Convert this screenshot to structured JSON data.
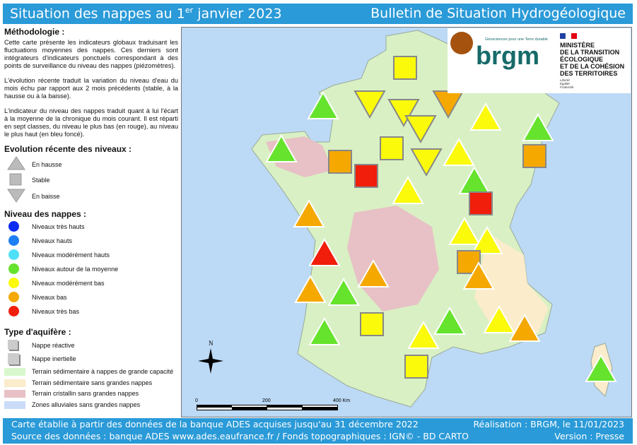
{
  "header": {
    "title_prefix": "Situation des nappes au 1",
    "title_sup": "er",
    "title_suffix": " janvier 2023",
    "right": "Bulletin de Situation Hydrogéologique"
  },
  "methodology": {
    "title": "Méthodologie :",
    "p1": "Cette carte présente les indicateurs globaux traduisant les fluctuations moyennes des nappes. Ces derniers sont intégrateurs d'indicateurs ponctuels correspondant à des points de surveillance du niveau des nappes (piézomètres).",
    "p2": "L'évolution récente traduit la variation du niveau d'eau du mois échu par rapport aux 2 mois précédents (stable, à la hausse ou à la baisse).",
    "p3": "L'indicateur du niveau des nappes traduit quant à lui l'écart à la moyenne de la chronique du mois courant. Il est réparti en sept classes, du niveau le plus bas (en rouge), au niveau le plus haut (en bleu foncé)."
  },
  "evolution": {
    "title": "Evolution récente des niveaux :",
    "items": [
      "En hausse",
      "Stable",
      "En baisse"
    ]
  },
  "levels": {
    "title": "Niveau des nappes :",
    "items": [
      {
        "label": "Niveaux très hauts",
        "color": "#0a2cf0"
      },
      {
        "label": "Niveaux hauts",
        "color": "#1e7ff5"
      },
      {
        "label": "Niveaux modérément hauts",
        "color": "#4fe0f7"
      },
      {
        "label": "Niveaux autour de la moyenne",
        "color": "#66e32c"
      },
      {
        "label": "Niveaux modérément bas",
        "color": "#fafa0a"
      },
      {
        "label": "Niveaux bas",
        "color": "#f5a800"
      },
      {
        "label": "Niveaux très bas",
        "color": "#f01e0a"
      }
    ]
  },
  "aquifer": {
    "title": "Type d'aquifère :",
    "items": [
      "Nappe réactive",
      "Nappe inertielle"
    ]
  },
  "terrain": [
    {
      "label": "Terrain sédimentaire à nappes de grande capacité",
      "color": "#d9f7cc"
    },
    {
      "label": "Terrain sédimentaire sans grandes nappes",
      "color": "#fbeccb"
    },
    {
      "label": "Terrain cristallin sans grandes nappes",
      "color": "#e7c1c5"
    },
    {
      "label": "Zones alluviales sans grandes nappes",
      "color": "#cadcf8"
    }
  ],
  "map": {
    "north": "N",
    "scale": [
      "0",
      "200",
      "400 Km"
    ],
    "markers": [
      {
        "shape": "square",
        "level": "yellow"
      },
      {
        "shape": "up",
        "level": "green"
      },
      {
        "shape": "down",
        "level": "yellow"
      },
      {
        "shape": "down",
        "level": "yellow"
      },
      {
        "shape": "down",
        "level": "orange"
      },
      {
        "shape": "down",
        "level": "yellow"
      },
      {
        "shape": "up",
        "level": "yellow"
      },
      {
        "shape": "up",
        "level": "green"
      },
      {
        "shape": "up",
        "level": "green"
      },
      {
        "shape": "square",
        "level": "yellow"
      },
      {
        "shape": "down",
        "level": "yellow"
      },
      {
        "shape": "up",
        "level": "yellow"
      },
      {
        "shape": "square",
        "level": "orange"
      },
      {
        "shape": "square",
        "level": "orange"
      },
      {
        "shape": "square",
        "level": "red"
      },
      {
        "shape": "up",
        "level": "green"
      },
      {
        "shape": "up",
        "level": "yellow"
      },
      {
        "shape": "square",
        "level": "red"
      },
      {
        "shape": "up",
        "level": "orange"
      },
      {
        "shape": "up",
        "level": "yellow"
      },
      {
        "shape": "up",
        "level": "yellow"
      },
      {
        "shape": "up",
        "level": "red"
      },
      {
        "shape": "square",
        "level": "orange"
      },
      {
        "shape": "up",
        "level": "orange"
      },
      {
        "shape": "up",
        "level": "orange"
      },
      {
        "shape": "up",
        "level": "orange"
      },
      {
        "shape": "up",
        "level": "green"
      },
      {
        "shape": "square",
        "level": "yellow"
      },
      {
        "shape": "up",
        "level": "green"
      },
      {
        "shape": "up",
        "level": "yellow"
      },
      {
        "shape": "up",
        "level": "orange"
      },
      {
        "shape": "up",
        "level": "green"
      },
      {
        "shape": "up",
        "level": "yellow"
      },
      {
        "shape": "square",
        "level": "yellow"
      },
      {
        "shape": "up",
        "level": "green"
      }
    ]
  },
  "logos": {
    "brgm": "brgm",
    "brgm_tagline": "Géosciences pour une Terre durable",
    "ministry": [
      "MINISTÈRE",
      "DE LA TRANSITION",
      "ÉCOLOGIQUE",
      "ET DE LA COHÉSION",
      "DES TERRITOIRES"
    ],
    "motto": [
      "Liberté",
      "Égalité",
      "Fraternité"
    ]
  },
  "footer": {
    "line1": "Carte établie à partir des données de la banque ADES acquises jusqu'au 31 décembre 2022",
    "line2": "Source des données : banque ADES www.ades.eaufrance.fr / Fonds topographiques : IGN© - BD CARTO",
    "realisation": "Réalisation : BRGM, le 11/01/2023",
    "version": "Version : Presse"
  }
}
